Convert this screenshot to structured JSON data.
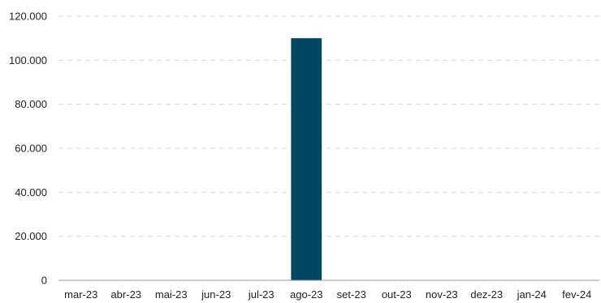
{
  "chart_data": {
    "type": "bar",
    "categories": [
      "mar-23",
      "abr-23",
      "mai-23",
      "jun-23",
      "jul-23",
      "ago-23",
      "set-23",
      "out-23",
      "nov-23",
      "dez-23",
      "jan-24",
      "fev-24"
    ],
    "values": [
      0,
      0,
      0,
      0,
      0,
      110000,
      0,
      0,
      0,
      0,
      0,
      0
    ],
    "title": "",
    "xlabel": "",
    "ylabel": "",
    "ylim": [
      0,
      120000
    ],
    "yticks": [
      0,
      20000,
      40000,
      60000,
      80000,
      100000,
      120000
    ],
    "ytick_labels": [
      "0",
      "20.000",
      "40.000",
      "60.000",
      "80.000",
      "100.000",
      "120.000"
    ],
    "grid": true,
    "legend": "none",
    "bar_color": "#004761"
  }
}
